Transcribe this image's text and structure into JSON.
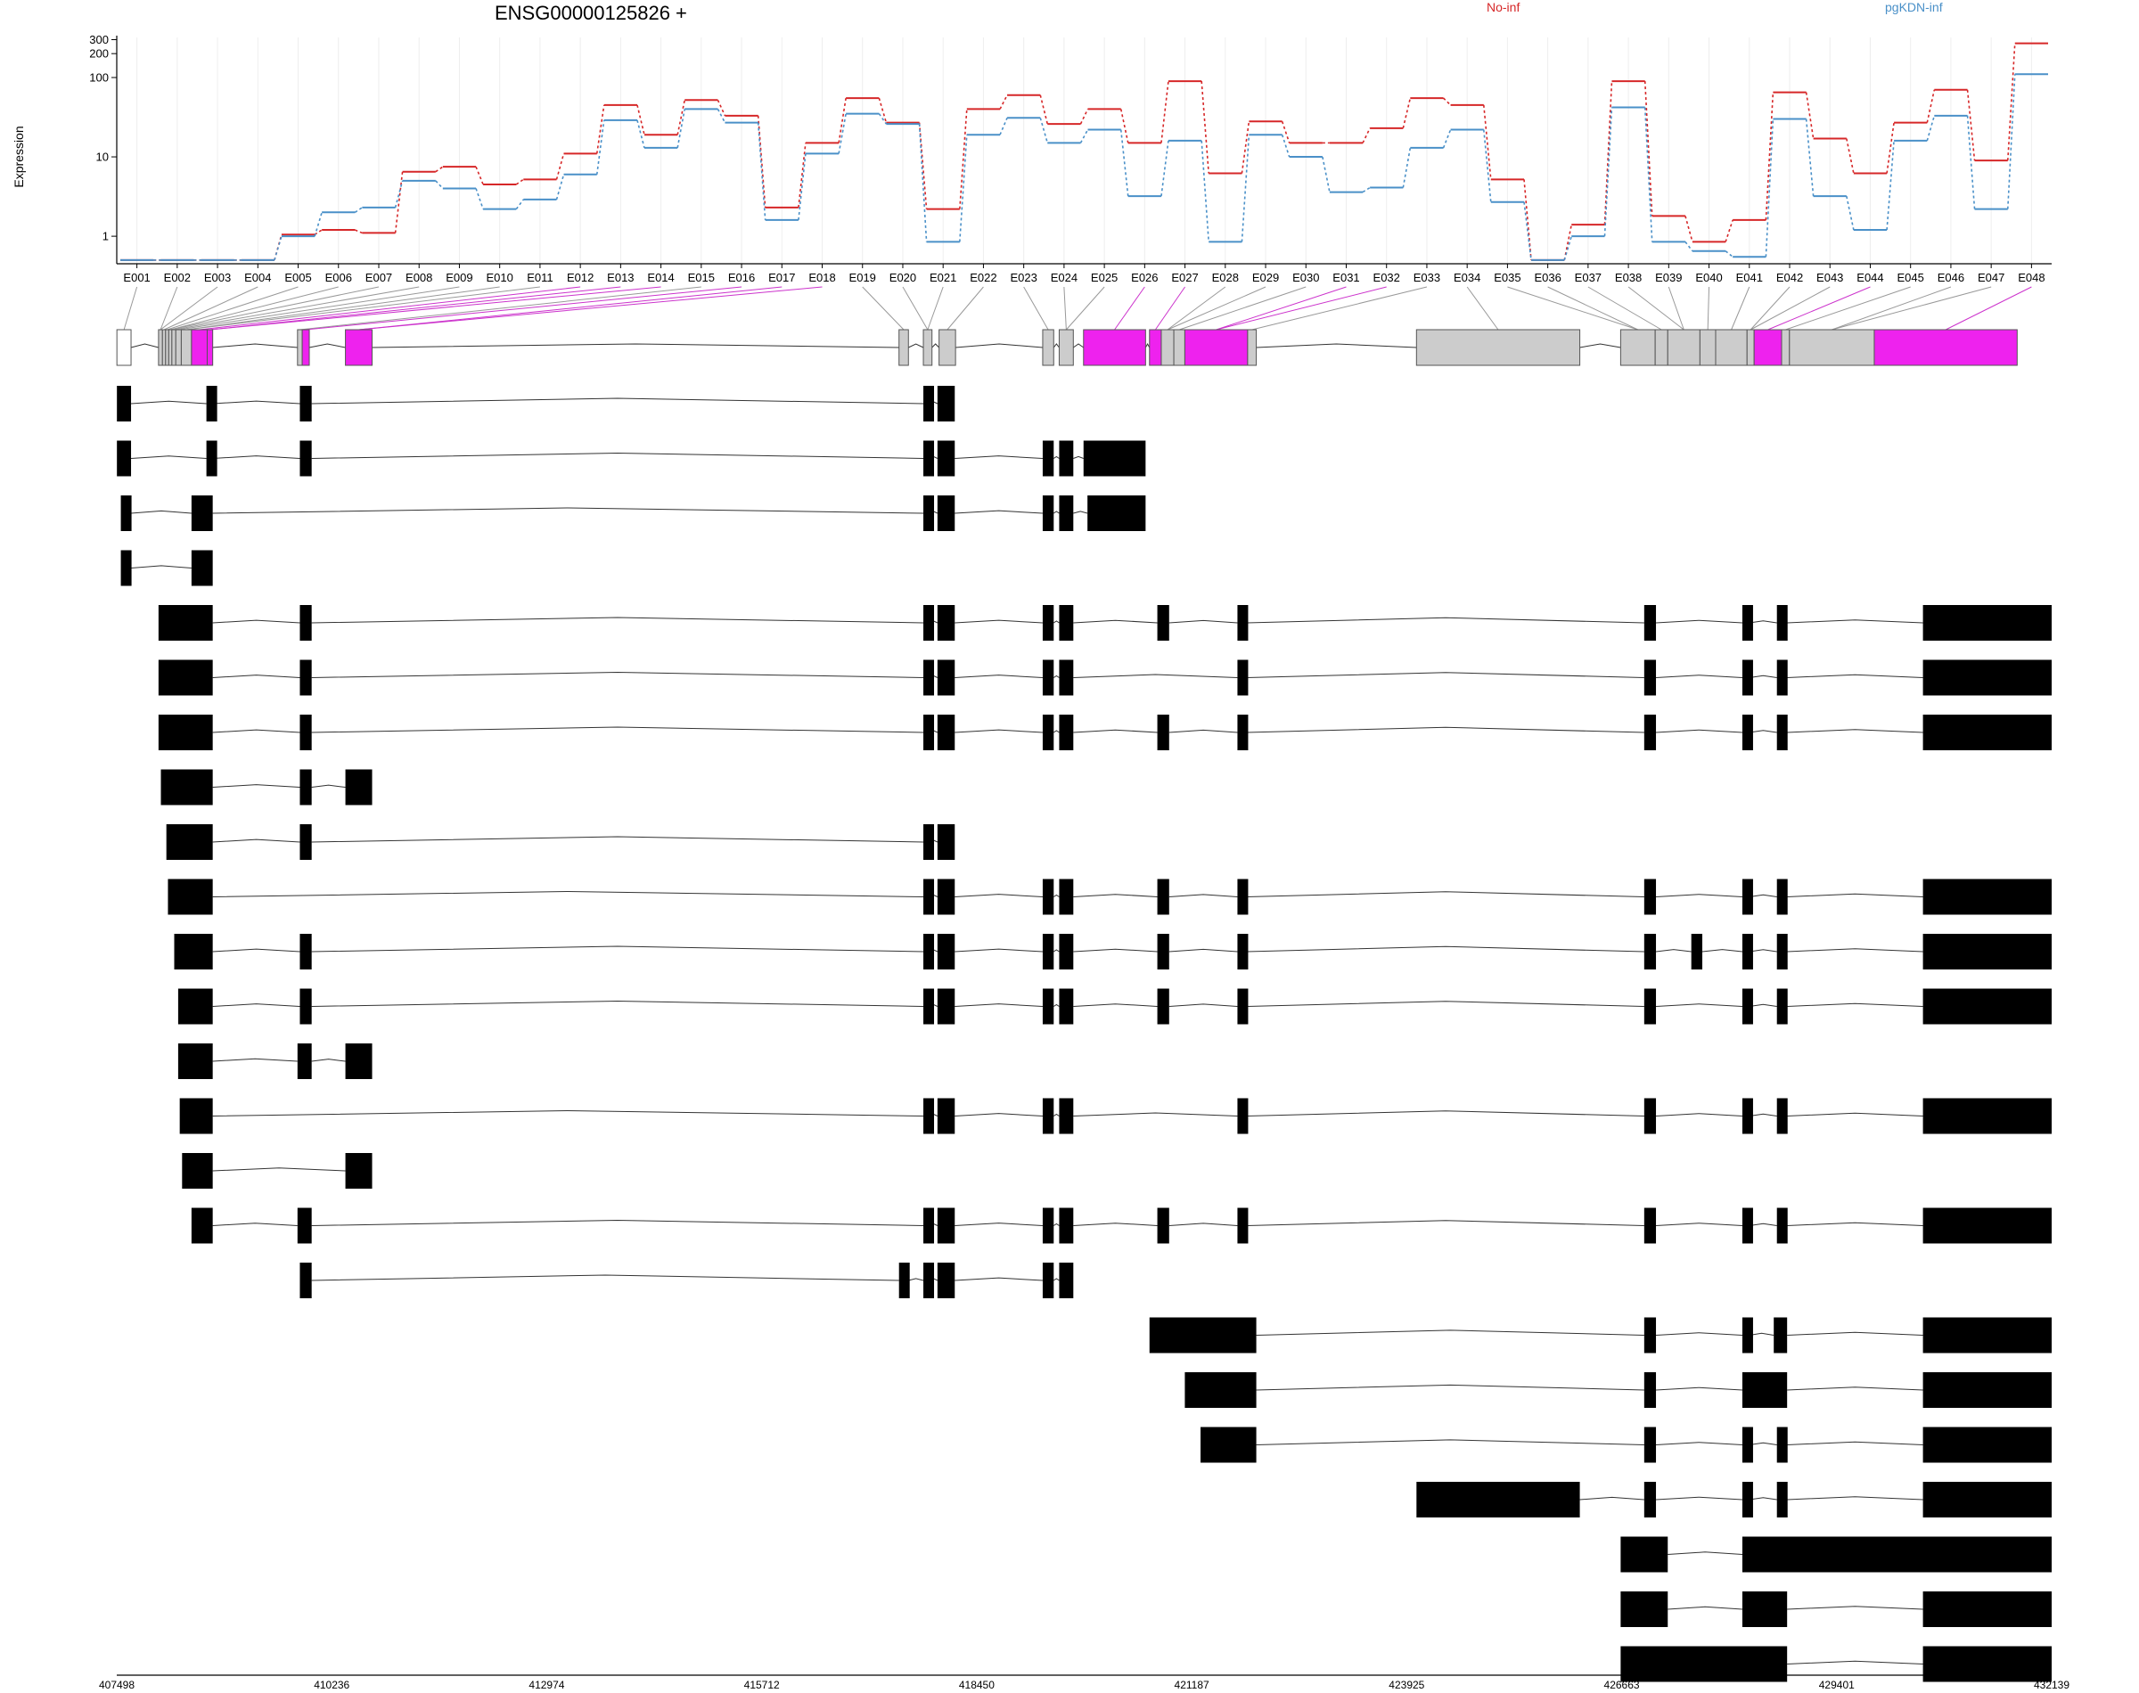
{
  "chart_data": {
    "type": "line",
    "title": "ENSG00000125826 +",
    "ylabel": "Expression",
    "yscale": "log",
    "yticks": [
      "300",
      "200",
      "100",
      "10",
      "1"
    ],
    "ytick_values": [
      300,
      200,
      100,
      10,
      1
    ],
    "ylim": [
      0.45,
      320
    ],
    "categories": [
      "E001",
      "E002",
      "E003",
      "E004",
      "E005",
      "E006",
      "E007",
      "E008",
      "E009",
      "E010",
      "E011",
      "E012",
      "E013",
      "E014",
      "E015",
      "E016",
      "E017",
      "E018",
      "E019",
      "E020",
      "E021",
      "E022",
      "E023",
      "E024",
      "E025",
      "E026",
      "E027",
      "E028",
      "E029",
      "E030",
      "E031",
      "E032",
      "E033",
      "E034",
      "E035",
      "E036",
      "E037",
      "E038",
      "E039",
      "E040",
      "E041",
      "E042",
      "E043",
      "E044",
      "E045",
      "E046",
      "E047",
      "E048"
    ],
    "series": [
      {
        "name": "No-inf",
        "color": "#d62728",
        "values": [
          0.5,
          0.5,
          0.5,
          0.5,
          1.05,
          1.2,
          1.1,
          6.5,
          7.5,
          4.5,
          5.2,
          11,
          45,
          19,
          52,
          33,
          2.3,
          15,
          55,
          27,
          2.2,
          40,
          60,
          26,
          40,
          15,
          90,
          6.2,
          28,
          15,
          15,
          23,
          55,
          45,
          5.2,
          0.5,
          1.4,
          90,
          1.8,
          0.85,
          1.6,
          65,
          17,
          6.2,
          27,
          70,
          9,
          270
        ]
      },
      {
        "name": "pgKDN-inf",
        "color": "#4a90c8",
        "values": [
          0.5,
          0.5,
          0.5,
          0.5,
          1.0,
          2.0,
          2.3,
          5,
          4,
          2.2,
          2.9,
          6,
          29,
          13,
          40,
          27,
          1.6,
          11,
          35,
          26,
          0.85,
          19,
          31,
          15,
          22,
          3.2,
          16,
          0.85,
          19,
          10,
          3.6,
          4.1,
          13,
          22,
          2.7,
          0.5,
          1.0,
          42,
          0.85,
          0.65,
          0.55,
          30,
          3.2,
          1.2,
          16,
          33,
          2.2,
          110
        ]
      }
    ],
    "genomic_axis": {
      "start": 407498,
      "end": 432139,
      "tick_labels": [
        "407498",
        "410236",
        "412974",
        "415712",
        "418450",
        "421187",
        "423925",
        "426663",
        "429401",
        "432139"
      ]
    },
    "gene_model": {
      "exon_bins": [
        {
          "s": 407500,
          "e": 407680,
          "fill": "white"
        },
        {
          "s": 408030,
          "e": 408080,
          "fill": "gray"
        },
        {
          "s": 408080,
          "e": 408120,
          "fill": "gray"
        },
        {
          "s": 408120,
          "e": 408160,
          "fill": "gray"
        },
        {
          "s": 408160,
          "e": 408200,
          "fill": "gray"
        },
        {
          "s": 408200,
          "e": 408250,
          "fill": "gray"
        },
        {
          "s": 408250,
          "e": 408320,
          "fill": "gray"
        },
        {
          "s": 408320,
          "e": 408450,
          "fill": "gray"
        },
        {
          "s": 408450,
          "e": 408650,
          "fill": "magenta"
        },
        {
          "s": 408650,
          "e": 408720,
          "fill": "magenta"
        },
        {
          "s": 409800,
          "e": 409860,
          "fill": "gray"
        },
        {
          "s": 409860,
          "e": 409950,
          "fill": "magenta"
        },
        {
          "s": 410410,
          "e": 410750,
          "fill": "magenta"
        },
        {
          "s": 417460,
          "e": 417580,
          "fill": "gray"
        },
        {
          "s": 417770,
          "e": 417880,
          "fill": "gray"
        },
        {
          "s": 417970,
          "e": 418180,
          "fill": "gray"
        },
        {
          "s": 419290,
          "e": 419430,
          "fill": "gray"
        },
        {
          "s": 419500,
          "e": 419680,
          "fill": "gray"
        },
        {
          "s": 419810,
          "e": 420600,
          "fill": "magenta"
        },
        {
          "s": 420650,
          "e": 420800,
          "fill": "magenta"
        },
        {
          "s": 420800,
          "e": 420960,
          "fill": "gray"
        },
        {
          "s": 420960,
          "e": 421100,
          "fill": "gray"
        },
        {
          "s": 421100,
          "e": 421900,
          "fill": "magenta"
        },
        {
          "s": 421900,
          "e": 422010,
          "fill": "gray"
        },
        {
          "s": 424050,
          "e": 426130,
          "fill": "gray"
        },
        {
          "s": 426650,
          "e": 427090,
          "fill": "gray"
        },
        {
          "s": 427090,
          "e": 427250,
          "fill": "gray"
        },
        {
          "s": 427250,
          "e": 427660,
          "fill": "gray"
        },
        {
          "s": 427660,
          "e": 427860,
          "fill": "gray"
        },
        {
          "s": 427860,
          "e": 428260,
          "fill": "gray"
        },
        {
          "s": 428260,
          "e": 428350,
          "fill": "gray"
        },
        {
          "s": 428350,
          "e": 428700,
          "fill": "magenta"
        },
        {
          "s": 428700,
          "e": 428800,
          "fill": "gray"
        },
        {
          "s": 428800,
          "e": 429880,
          "fill": "gray"
        },
        {
          "s": 429880,
          "e": 431700,
          "fill": "magenta"
        }
      ],
      "transcripts": [
        [
          [
            407500,
            407680
          ],
          [
            408640,
            408720
          ],
          [
            409830,
            409980
          ],
          [
            417770,
            417850
          ],
          [
            417950,
            418170
          ]
        ],
        [
          [
            407500,
            407680
          ],
          [
            408640,
            408720
          ],
          [
            409830,
            409980
          ],
          [
            417770,
            417850
          ],
          [
            417950,
            418170
          ],
          [
            419290,
            419430
          ],
          [
            419500,
            419680
          ],
          [
            419810,
            420600
          ]
        ],
        [
          [
            407550,
            407680
          ],
          [
            408450,
            408720
          ],
          [
            417770,
            417850
          ],
          [
            417950,
            418170
          ],
          [
            419290,
            419430
          ],
          [
            419500,
            419680
          ],
          [
            419860,
            420600
          ]
        ],
        [
          [
            407550,
            407680
          ],
          [
            408450,
            408720
          ]
        ],
        [
          [
            408030,
            408720
          ],
          [
            409830,
            409980
          ],
          [
            417770,
            417850
          ],
          [
            417950,
            418170
          ],
          [
            419290,
            419430
          ],
          [
            419500,
            419680
          ],
          [
            420750,
            420900
          ],
          [
            421770,
            421890
          ],
          [
            426950,
            427100
          ],
          [
            428200,
            428290
          ],
          [
            428640,
            428770
          ],
          [
            430500,
            432139
          ]
        ],
        [
          [
            408030,
            408720
          ],
          [
            409830,
            409980
          ],
          [
            417770,
            417850
          ],
          [
            417950,
            418170
          ],
          [
            419290,
            419430
          ],
          [
            419500,
            419680
          ],
          [
            421770,
            421890
          ],
          [
            426950,
            427100
          ],
          [
            428200,
            428290
          ],
          [
            428640,
            428770
          ],
          [
            430500,
            432139
          ]
        ],
        [
          [
            408030,
            408720
          ],
          [
            409830,
            409980
          ],
          [
            417770,
            417850
          ],
          [
            417950,
            418170
          ],
          [
            419290,
            419430
          ],
          [
            419500,
            419680
          ],
          [
            420750,
            420900
          ],
          [
            421770,
            421890
          ],
          [
            426950,
            427100
          ],
          [
            428200,
            428290
          ],
          [
            428640,
            428770
          ],
          [
            430500,
            432139
          ]
        ],
        [
          [
            408060,
            408720
          ],
          [
            409830,
            409980
          ],
          [
            410410,
            410750
          ]
        ],
        [
          [
            408130,
            408720
          ],
          [
            409830,
            409980
          ],
          [
            417770,
            417850
          ],
          [
            417950,
            418170
          ]
        ],
        [
          [
            408150,
            408720
          ],
          [
            417770,
            417850
          ],
          [
            417950,
            418170
          ],
          [
            419290,
            419430
          ],
          [
            419500,
            419680
          ],
          [
            420750,
            420900
          ],
          [
            421770,
            421890
          ],
          [
            426950,
            427100
          ],
          [
            428200,
            428290
          ],
          [
            428640,
            428770
          ],
          [
            430500,
            432139
          ]
        ],
        [
          [
            408230,
            408720
          ],
          [
            409830,
            409980
          ],
          [
            417770,
            417850
          ],
          [
            417950,
            418170
          ],
          [
            419290,
            419430
          ],
          [
            419500,
            419680
          ],
          [
            420750,
            420900
          ],
          [
            421770,
            421890
          ],
          [
            426950,
            427100
          ],
          [
            427550,
            427690
          ],
          [
            428200,
            428290
          ],
          [
            428640,
            428770
          ],
          [
            430500,
            432139
          ]
        ],
        [
          [
            408280,
            408720
          ],
          [
            409830,
            409980
          ],
          [
            417770,
            417850
          ],
          [
            417950,
            418170
          ],
          [
            419290,
            419430
          ],
          [
            419500,
            419680
          ],
          [
            420750,
            420900
          ],
          [
            421770,
            421890
          ],
          [
            426950,
            427100
          ],
          [
            428200,
            428290
          ],
          [
            428640,
            428770
          ],
          [
            430500,
            432139
          ]
        ],
        [
          [
            408280,
            408720
          ],
          [
            409800,
            409980
          ],
          [
            410410,
            410750
          ]
        ],
        [
          [
            408300,
            408720
          ],
          [
            417770,
            417850
          ],
          [
            417950,
            418170
          ],
          [
            419290,
            419430
          ],
          [
            419500,
            419680
          ],
          [
            421770,
            421890
          ],
          [
            426950,
            427100
          ],
          [
            428200,
            428290
          ],
          [
            428640,
            428770
          ],
          [
            430500,
            432139
          ]
        ],
        [
          [
            408330,
            408720
          ],
          [
            410410,
            410750
          ]
        ],
        [
          [
            408450,
            408720
          ],
          [
            409800,
            409980
          ],
          [
            417770,
            417850
          ],
          [
            417950,
            418170
          ],
          [
            419290,
            419430
          ],
          [
            419500,
            419680
          ],
          [
            420750,
            420900
          ],
          [
            421770,
            421890
          ],
          [
            426950,
            427100
          ],
          [
            428200,
            428290
          ],
          [
            428640,
            428770
          ],
          [
            430500,
            432139
          ]
        ],
        [
          [
            409830,
            409980
          ],
          [
            417460,
            417580
          ],
          [
            417770,
            417850
          ],
          [
            417950,
            418170
          ],
          [
            419290,
            419430
          ],
          [
            419500,
            419680
          ]
        ],
        [
          [
            420650,
            422010
          ],
          [
            426950,
            427100
          ],
          [
            428200,
            428290
          ],
          [
            428600,
            428770
          ],
          [
            430500,
            432139
          ]
        ],
        [
          [
            421100,
            422010
          ],
          [
            426950,
            427100
          ],
          [
            428200,
            428770
          ],
          [
            430500,
            432139
          ]
        ],
        [
          [
            421300,
            422010
          ],
          [
            426950,
            427100
          ],
          [
            428200,
            428290
          ],
          [
            428640,
            428770
          ],
          [
            430500,
            432139
          ]
        ],
        [
          [
            424050,
            426130
          ],
          [
            426950,
            427100
          ],
          [
            428200,
            428290
          ],
          [
            428640,
            428770
          ],
          [
            430500,
            432139
          ]
        ],
        [
          [
            426650,
            427250
          ],
          [
            428200,
            432139
          ]
        ],
        [
          [
            426650,
            427250
          ],
          [
            428200,
            428770
          ],
          [
            430500,
            432139
          ]
        ],
        [
          [
            426650,
            428770
          ],
          [
            430500,
            432139
          ]
        ]
      ]
    }
  }
}
